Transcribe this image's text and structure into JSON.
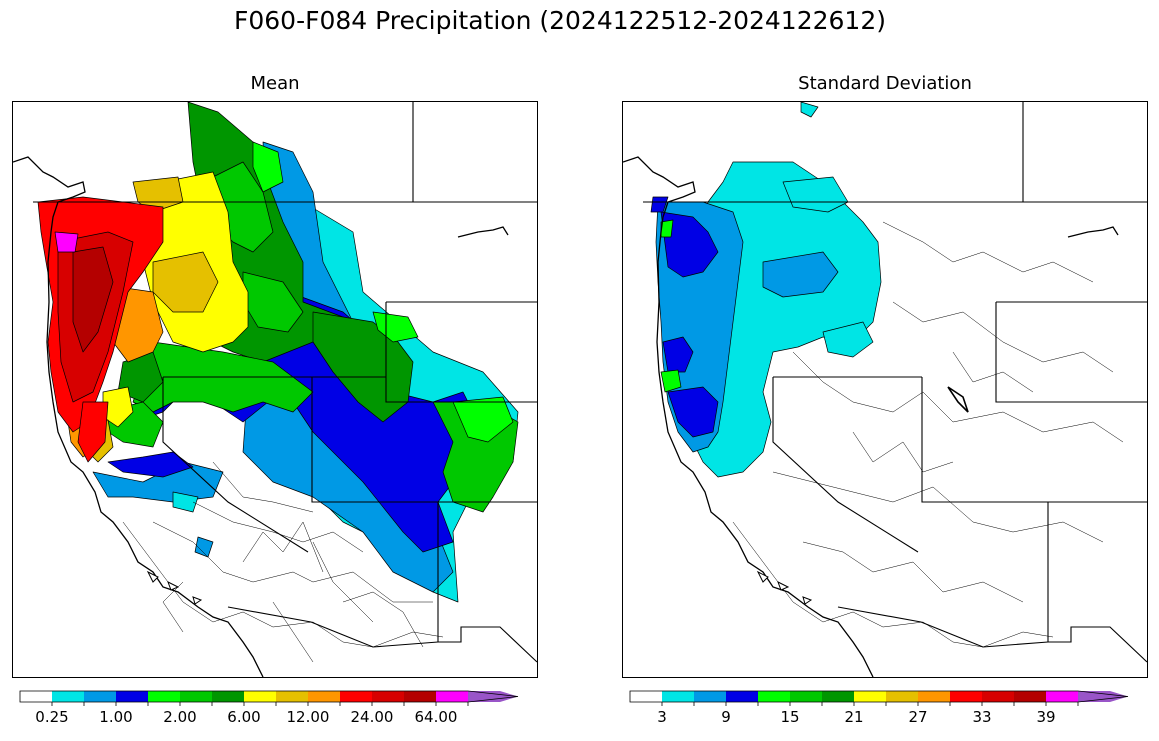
{
  "title": "F060-F084 Precipitation (2024122512-2024122612)",
  "panels": [
    {
      "title": "Mean",
      "colorbar": {
        "colors": [
          "#ffffff",
          "#00e5e5",
          "#0099e5",
          "#0000e5",
          "#00ff00",
          "#00c800",
          "#009600",
          "#ffff00",
          "#e5c000",
          "#ff9600",
          "#ff0000",
          "#d70000",
          "#b40000",
          "#ff00ff",
          "#9955c8"
        ],
        "tick_labels": [
          "0.25",
          "1.00",
          "2.00",
          "6.00",
          "12.00",
          "24.00",
          "64.00"
        ],
        "extend": "max"
      }
    },
    {
      "title": "Standard Deviation",
      "colorbar": {
        "colors": [
          "#ffffff",
          "#00e5e5",
          "#0099e5",
          "#0000e5",
          "#00ff00",
          "#00c800",
          "#009600",
          "#ffff00",
          "#e5c000",
          "#ff9600",
          "#ff0000",
          "#d70000",
          "#b40000",
          "#ff00ff",
          "#9955c8"
        ],
        "tick_labels": [
          "3",
          "9",
          "15",
          "21",
          "27",
          "33",
          "39"
        ],
        "extend": "max"
      }
    }
  ]
}
